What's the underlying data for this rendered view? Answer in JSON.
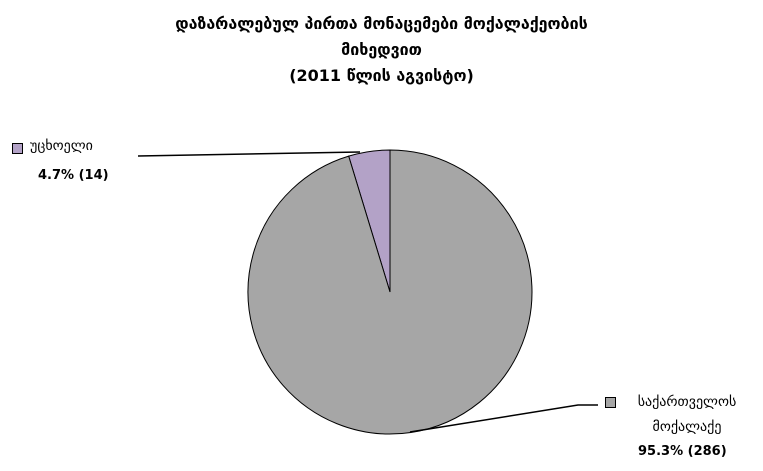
{
  "chart_data": {
    "type": "pie",
    "title": [
      "დაზარალებულ პირთა მონაცემები მოქალაქეობის",
      "მიხედვით"
    ],
    "subtitle": "(2011 წლის აგვისტო)",
    "categories": [
      "უცხოელი",
      "საქართველოს მოქალაქე"
    ],
    "values": [
      4.7,
      95.3
    ],
    "value_labels": [
      "4.7%  (14)",
      "95.3%  (286)"
    ],
    "colors": [
      "#b3a2c7",
      "#a6a6a6"
    ]
  }
}
